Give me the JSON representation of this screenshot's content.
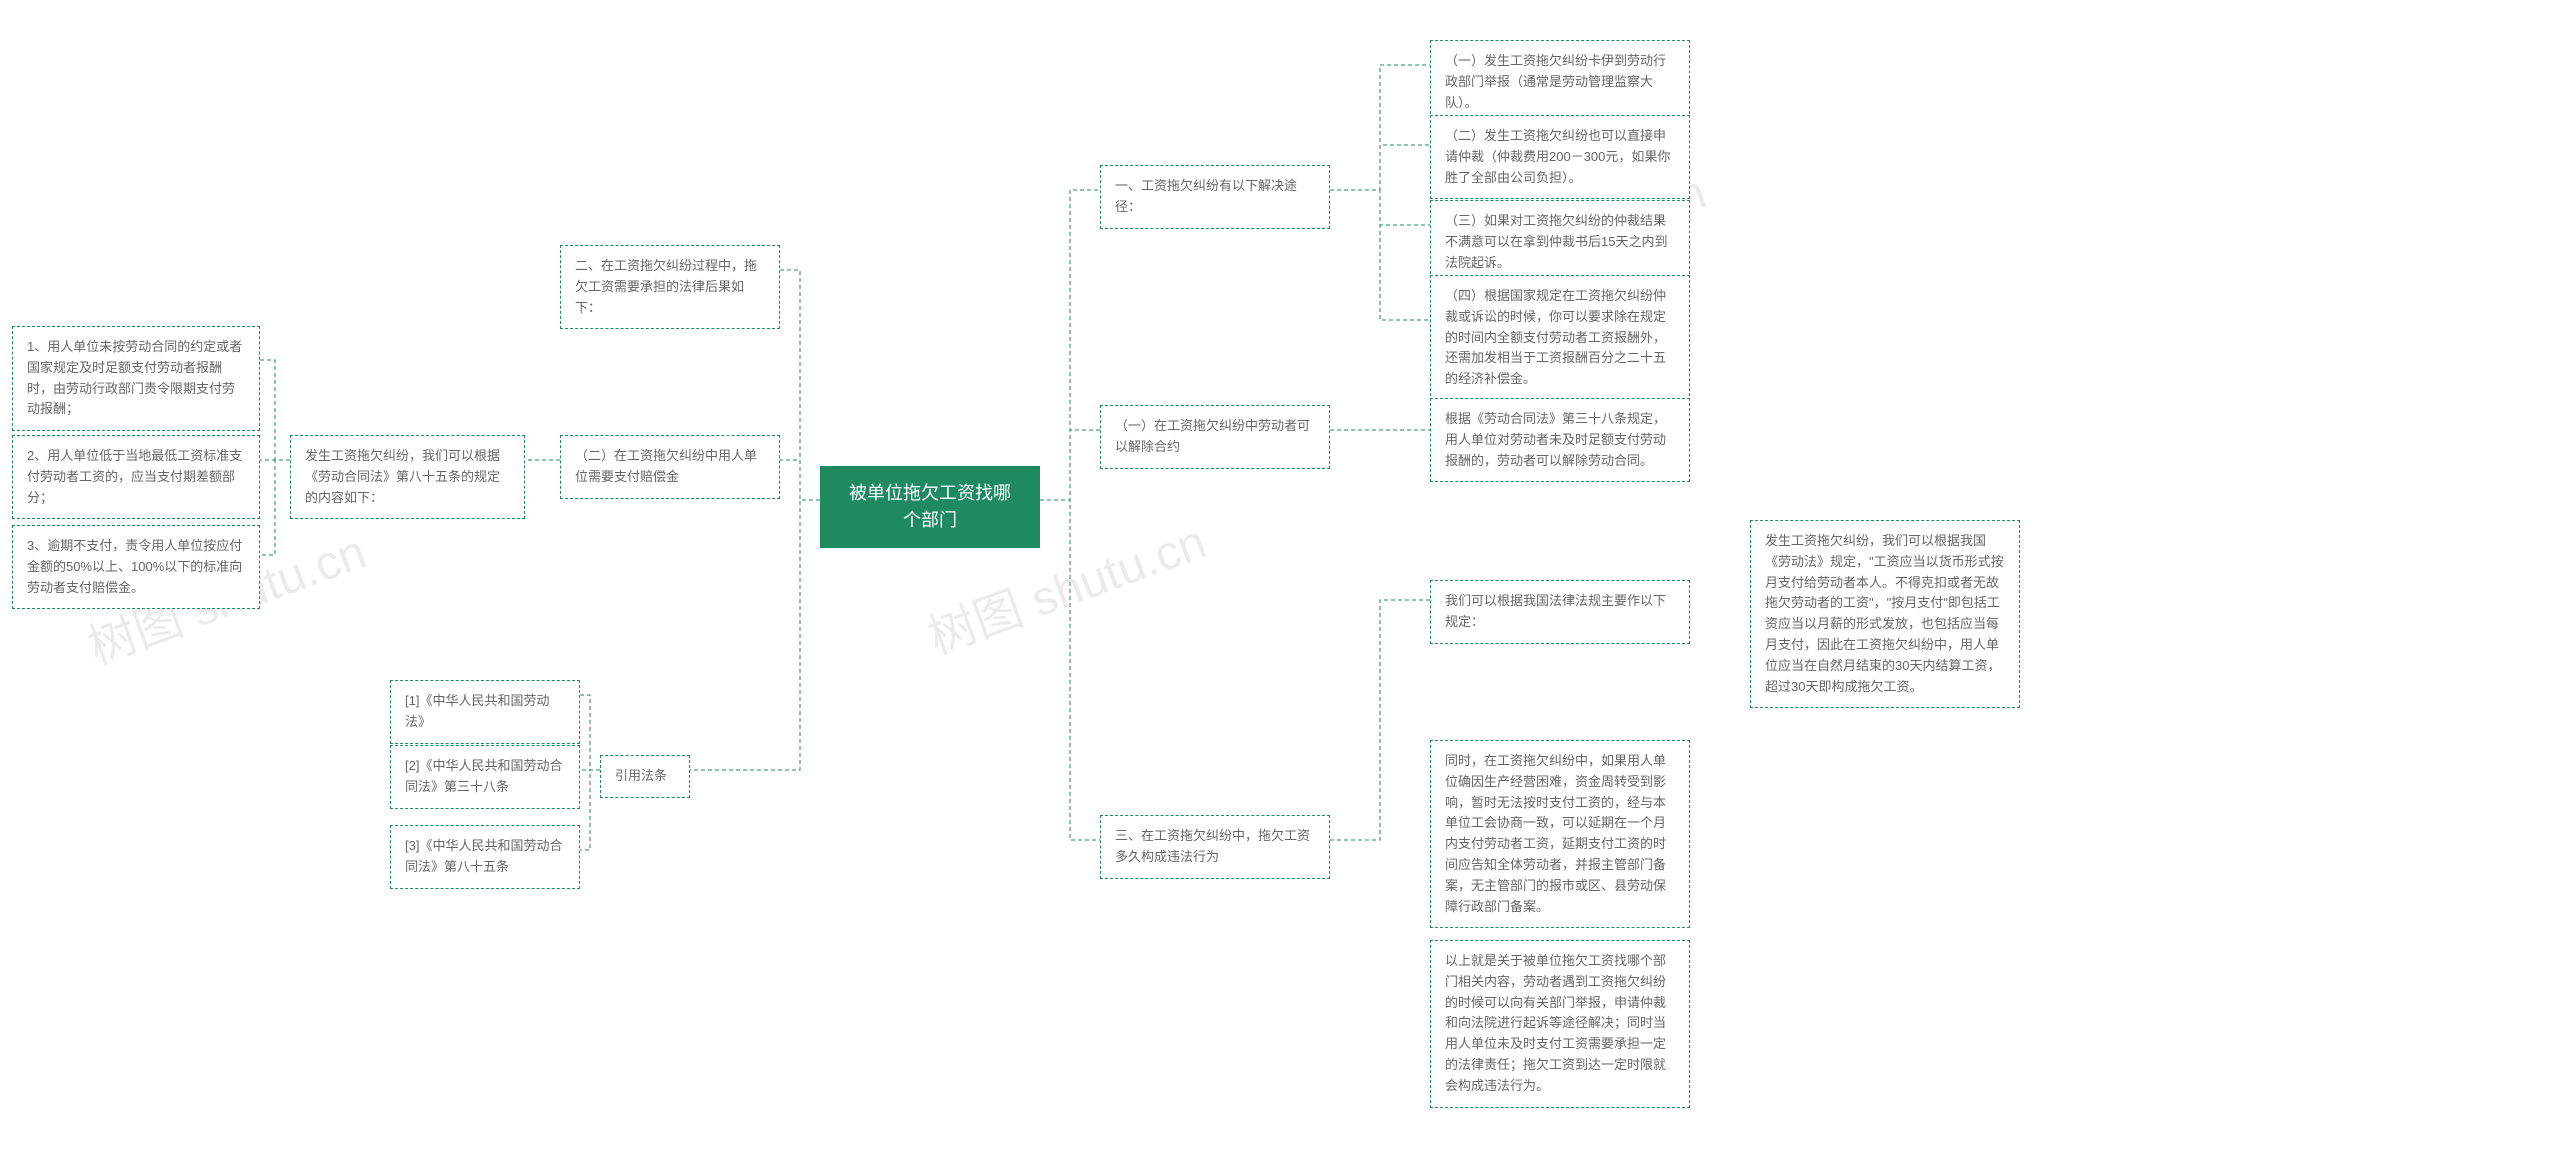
{
  "watermark": "树图 shutu.cn",
  "center": "被单位拖欠工资找哪个部门",
  "right": {
    "r1": {
      "title": "一、工资拖欠纠纷有以下解决途径：",
      "items": [
        "（一）发生工资拖欠纠纷卡伊到劳动行政部门举报（通常是劳动管理监察大队）。",
        "（二）发生工资拖欠纠纷也可以直接申请仲裁（仲裁费用200－300元，如果你胜了全部由公司负担）。",
        "（三）如果对工资拖欠纠纷的仲裁结果不满意可以在拿到仲裁书后15天之内到法院起诉。",
        "（四）根据国家规定在工资拖欠纠纷仲裁或诉讼的时候，你可以要求除在规定的时间内全额支付劳动者工资报酬外，还需加发相当于工资报酬百分之二十五的经济补偿金。"
      ]
    },
    "r2": {
      "title": "（一）在工资拖欠纠纷中劳动者可以解除合约",
      "detail": "根据《劳动合同法》第三十八条规定，用人单位对劳动者未及时足额支付劳动报酬的，劳动者可以解除劳动合同。"
    },
    "r3": {
      "title": "三、在工资拖欠纠纷中，拖欠工资多久构成违法行为",
      "sub": "我们可以根据我国法律法规主要作以下规定：",
      "detail1": "发生工资拖欠纠纷，我们可以根据我国《劳动法》规定，\"工资应当以货币形式按月支付给劳动者本人。不得克扣或者无故拖欠劳动者的工资\"，\"按月支付\"即包括工资应当以月薪的形式发放，也包括应当每月支付，因此在工资拖欠纠纷中，用人单位应当在自然月结束的30天内结算工资，超过30天即构成拖欠工资。",
      "detail2": "同时，在工资拖欠纠纷中，如果用人单位确因生产经营困难，资金周转受到影响，暂时无法按时支付工资的，经与本单位工会协商一致，可以延期在一个月内支付劳动者工资，延期支付工资的时间应告知全体劳动者，并报主管部门备案，无主管部门的报市或区、县劳动保障行政部门备案。",
      "detail3": "以上就是关于被单位拖欠工资找哪个部门相关内容，劳动者遇到工资拖欠纠纷的时候可以向有关部门举报，申请仲裁和向法院进行起诉等途径解决；同时当用人单位未及时支付工资需要承担一定的法律责任；拖欠工资到达一定时限就会构成违法行为。"
    }
  },
  "left": {
    "l1": {
      "title": "二、在工资拖欠纠纷过程中，拖欠工资需要承担的法律后果如下："
    },
    "l2": {
      "title": "（二）在工资拖欠纠纷中用人单位需要支付赔偿金",
      "sub": "发生工资拖欠纠纷，我们可以根据《劳动合同法》第八十五条的规定的内容如下：",
      "items": [
        "1、用人单位未按劳动合同的约定或者国家规定及时足额支付劳动者报酬时，由劳动行政部门责令限期支付劳动报酬；",
        "2、用人单位低于当地最低工资标准支付劳动者工资的，应当支付期差额部分；",
        "3、逾期不支付，责令用人单位按应付金额的50%以上、100%以下的标准向劳动者支付赔偿金。"
      ]
    },
    "l3": {
      "title": "引用法条",
      "items": [
        "[1]《中华人民共和国劳动法》",
        "[2]《中华人民共和国劳动合同法》第三十八条",
        "[3]《中华人民共和国劳动合同法》第八十五条"
      ]
    }
  },
  "colors": {
    "primary": "#1f8a5f",
    "text": "#666666",
    "bg": "#ffffff"
  }
}
